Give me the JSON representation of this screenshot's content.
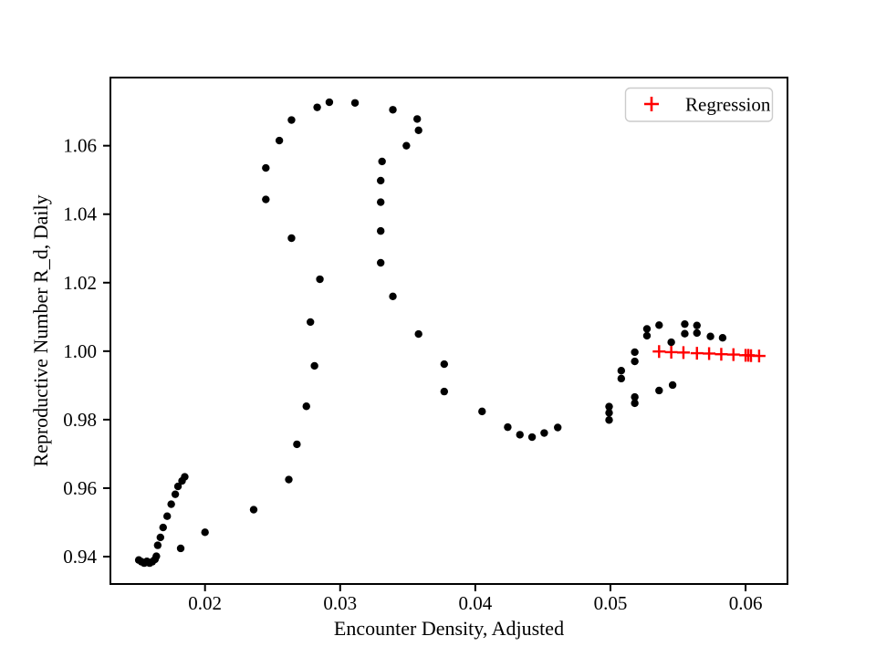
{
  "chart_data": {
    "type": "scatter",
    "title": "",
    "xlabel": "Encounter Density, Adjusted",
    "ylabel": "Reproductive Number R_d, Daily",
    "xlim": [
      0.013,
      0.0631
    ],
    "ylim": [
      0.932,
      1.0799
    ],
    "grid": false,
    "legend": {
      "position": "upper right",
      "label": "Regression",
      "marker": "plus",
      "marker_color": "#ff0000"
    },
    "x_ticks": {
      "values": [
        0.02,
        0.03,
        0.04,
        0.05,
        0.06
      ],
      "labels": [
        "0.02",
        "0.03",
        "0.04",
        "0.05",
        "0.06"
      ]
    },
    "y_ticks": {
      "values": [
        0.94,
        0.96,
        0.98,
        1.0,
        1.02,
        1.04,
        1.06
      ],
      "labels": [
        "0.94",
        "0.96",
        "0.98",
        "1.00",
        "1.02",
        "1.04",
        "1.06"
      ]
    },
    "series": [
      {
        "name": "Daily reproductive number",
        "marker": "circle",
        "color": "#000000",
        "points": [
          [
            0.0151,
            0.939
          ],
          [
            0.0153,
            0.9385
          ],
          [
            0.0155,
            0.9381
          ],
          [
            0.0157,
            0.9386
          ],
          [
            0.0159,
            0.9381
          ],
          [
            0.0161,
            0.9385
          ],
          [
            0.0163,
            0.9392
          ],
          [
            0.0164,
            0.9401
          ],
          [
            0.0165,
            0.9433
          ],
          [
            0.0167,
            0.9456
          ],
          [
            0.0169,
            0.9485
          ],
          [
            0.0172,
            0.9518
          ],
          [
            0.0175,
            0.9553
          ],
          [
            0.0178,
            0.9582
          ],
          [
            0.018,
            0.9605
          ],
          [
            0.0183,
            0.9621
          ],
          [
            0.0185,
            0.9633
          ],
          [
            0.0182,
            0.9424
          ],
          [
            0.02,
            0.9471
          ],
          [
            0.0236,
            0.9537
          ],
          [
            0.0262,
            0.9625
          ],
          [
            0.0268,
            0.9728
          ],
          [
            0.0275,
            0.9839
          ],
          [
            0.0281,
            0.9957
          ],
          [
            0.0278,
            1.0085
          ],
          [
            0.0285,
            1.021
          ],
          [
            0.0264,
            1.033
          ],
          [
            0.0245,
            1.0443
          ],
          [
            0.0245,
            1.0535
          ],
          [
            0.0255,
            1.0615
          ],
          [
            0.0264,
            1.0675
          ],
          [
            0.0283,
            1.0712
          ],
          [
            0.0292,
            1.0727
          ],
          [
            0.0311,
            1.0725
          ],
          [
            0.0339,
            1.0705
          ],
          [
            0.0357,
            1.0678
          ],
          [
            0.0358,
            1.0645
          ],
          [
            0.0349,
            1.06
          ],
          [
            0.0331,
            1.0554
          ],
          [
            0.033,
            1.0498
          ],
          [
            0.033,
            1.0435
          ],
          [
            0.033,
            1.0351
          ],
          [
            0.033,
            1.0258
          ],
          [
            0.0339,
            1.016
          ],
          [
            0.0358,
            1.005
          ],
          [
            0.0377,
            0.9962
          ],
          [
            0.0377,
            0.9882
          ],
          [
            0.0405,
            0.9824
          ],
          [
            0.0424,
            0.9778
          ],
          [
            0.0433,
            0.9756
          ],
          [
            0.0442,
            0.9749
          ],
          [
            0.0451,
            0.9761
          ],
          [
            0.0461,
            0.9777
          ],
          [
            0.0499,
            0.9838
          ],
          [
            0.0499,
            0.982
          ],
          [
            0.0499,
            0.9799
          ],
          [
            0.0508,
            0.9943
          ],
          [
            0.0508,
            0.992
          ],
          [
            0.0518,
            0.9997
          ],
          [
            0.0518,
            0.997
          ],
          [
            0.0518,
            0.9866
          ],
          [
            0.0518,
            0.9848
          ],
          [
            0.0527,
            1.0065
          ],
          [
            0.0527,
            1.0045
          ],
          [
            0.0536,
            1.0076
          ],
          [
            0.0536,
            0.9885
          ],
          [
            0.0545,
            1.0026
          ],
          [
            0.0546,
            0.9901
          ],
          [
            0.0555,
            1.0079
          ],
          [
            0.0555,
            1.0051
          ],
          [
            0.0564,
            1.0075
          ],
          [
            0.0564,
            1.0053
          ],
          [
            0.0574,
            1.0043
          ],
          [
            0.0583,
            1.0039
          ]
        ]
      },
      {
        "name": "Regression",
        "marker": "plus",
        "color": "#ff0000",
        "points": [
          [
            0.0536,
            0.9999
          ],
          [
            0.0545,
            0.9997
          ],
          [
            0.0554,
            0.9996
          ],
          [
            0.0564,
            0.9994
          ],
          [
            0.0573,
            0.9993
          ],
          [
            0.0582,
            0.9991
          ],
          [
            0.0591,
            0.999
          ],
          [
            0.06,
            0.9988
          ],
          [
            0.0602,
            0.9988
          ],
          [
            0.0604,
            0.9987
          ],
          [
            0.061,
            0.9986
          ]
        ]
      }
    ]
  }
}
